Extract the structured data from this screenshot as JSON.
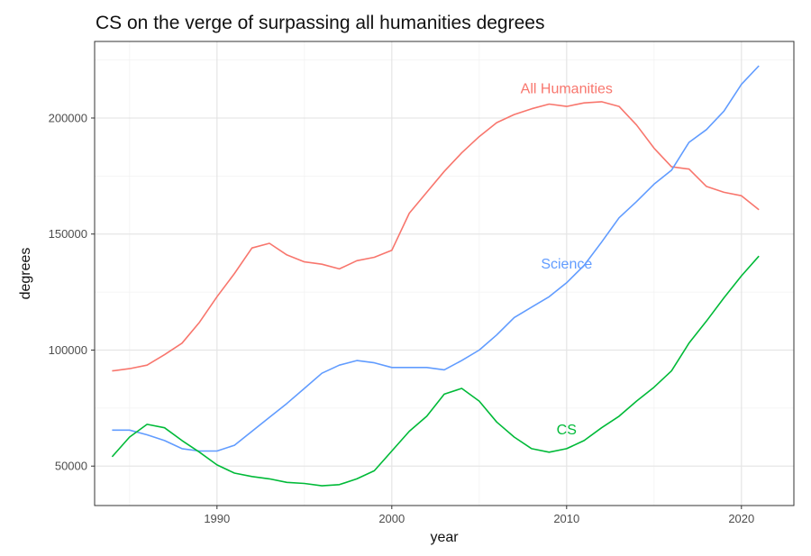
{
  "chart_data": {
    "type": "line",
    "title": "CS on the verge of surpassing all humanities degrees",
    "xlabel": "year",
    "ylabel": "degrees",
    "xlim": [
      1983,
      2023
    ],
    "ylim": [
      33000,
      233000
    ],
    "x_ticks": [
      1990,
      2000,
      2010,
      2020
    ],
    "y_ticks": [
      50000,
      100000,
      150000,
      200000
    ],
    "x_tick_labels": [
      "1990",
      "2000",
      "2010",
      "2020"
    ],
    "y_tick_labels": [
      "50000",
      "100000",
      "150000",
      "200000"
    ],
    "grid": true,
    "legend": "none (direct labels)",
    "x": [
      1984,
      1985,
      1986,
      1987,
      1988,
      1989,
      1990,
      1991,
      1992,
      1993,
      1994,
      1995,
      1996,
      1997,
      1998,
      1999,
      2000,
      2001,
      2002,
      2003,
      2004,
      2005,
      2006,
      2007,
      2008,
      2009,
      2010,
      2011,
      2012,
      2013,
      2014,
      2015,
      2016,
      2017,
      2018,
      2019,
      2020,
      2021
    ],
    "series": [
      {
        "name": "All Humanities",
        "color": "#f8766d",
        "label_at": [
          2010,
          213000
        ],
        "values": [
          91000,
          92000,
          93500,
          98000,
          103000,
          112000,
          123000,
          133000,
          144000,
          146000,
          141000,
          138000,
          137000,
          135000,
          138500,
          140000,
          143000,
          159000,
          168000,
          177000,
          185000,
          192000,
          198000,
          201500,
          204000,
          206000,
          205000,
          206500,
          207000,
          205000,
          197000,
          187000,
          179000,
          178000,
          170500,
          168000,
          166500,
          160500
        ]
      },
      {
        "name": "Science",
        "color": "#619cff",
        "label_at": [
          2010,
          137500
        ],
        "values": [
          65500,
          65500,
          63500,
          61000,
          57500,
          56500,
          56500,
          59000,
          65000,
          71000,
          77000,
          83500,
          90000,
          93500,
          95500,
          94500,
          92500,
          92500,
          92500,
          91500,
          95500,
          100000,
          106500,
          114000,
          118500,
          123000,
          129000,
          136500,
          146500,
          157000,
          164000,
          171500,
          177500,
          189500,
          195000,
          203000,
          214500,
          222500
        ]
      },
      {
        "name": "CS",
        "color": "#00ba38",
        "label_at": [
          2010,
          66000
        ],
        "values": [
          54000,
          62500,
          68000,
          66500,
          61000,
          56000,
          50500,
          47000,
          45500,
          44500,
          43000,
          42500,
          41500,
          42000,
          44500,
          48000,
          56500,
          65000,
          71500,
          81000,
          83500,
          78000,
          69000,
          62500,
          57500,
          56000,
          57500,
          61000,
          66500,
          71500,
          78000,
          84000,
          91000,
          103000,
          112500,
          122500,
          132000,
          140500
        ]
      }
    ]
  }
}
